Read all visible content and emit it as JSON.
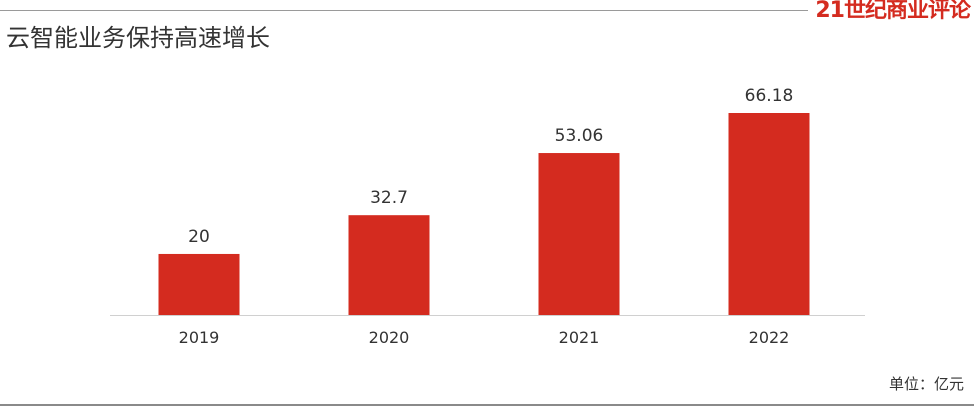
{
  "header": {
    "brand": "21世纪商业评论",
    "brand_color": "#d42b1f"
  },
  "chart_data": {
    "type": "bar",
    "title": "云智能业务保持高速增长",
    "unit": "单位：亿元",
    "categories": [
      "2019",
      "2020",
      "2021",
      "2022"
    ],
    "values": [
      20,
      32.7,
      53.06,
      66.18
    ],
    "value_labels": [
      "20",
      "32.7",
      "53.06",
      "66.18"
    ],
    "xlabel": "",
    "ylabel": "",
    "ylim": [
      0,
      66.18
    ],
    "bar_color": "#d42b1f",
    "grid": false,
    "legend": "none"
  }
}
